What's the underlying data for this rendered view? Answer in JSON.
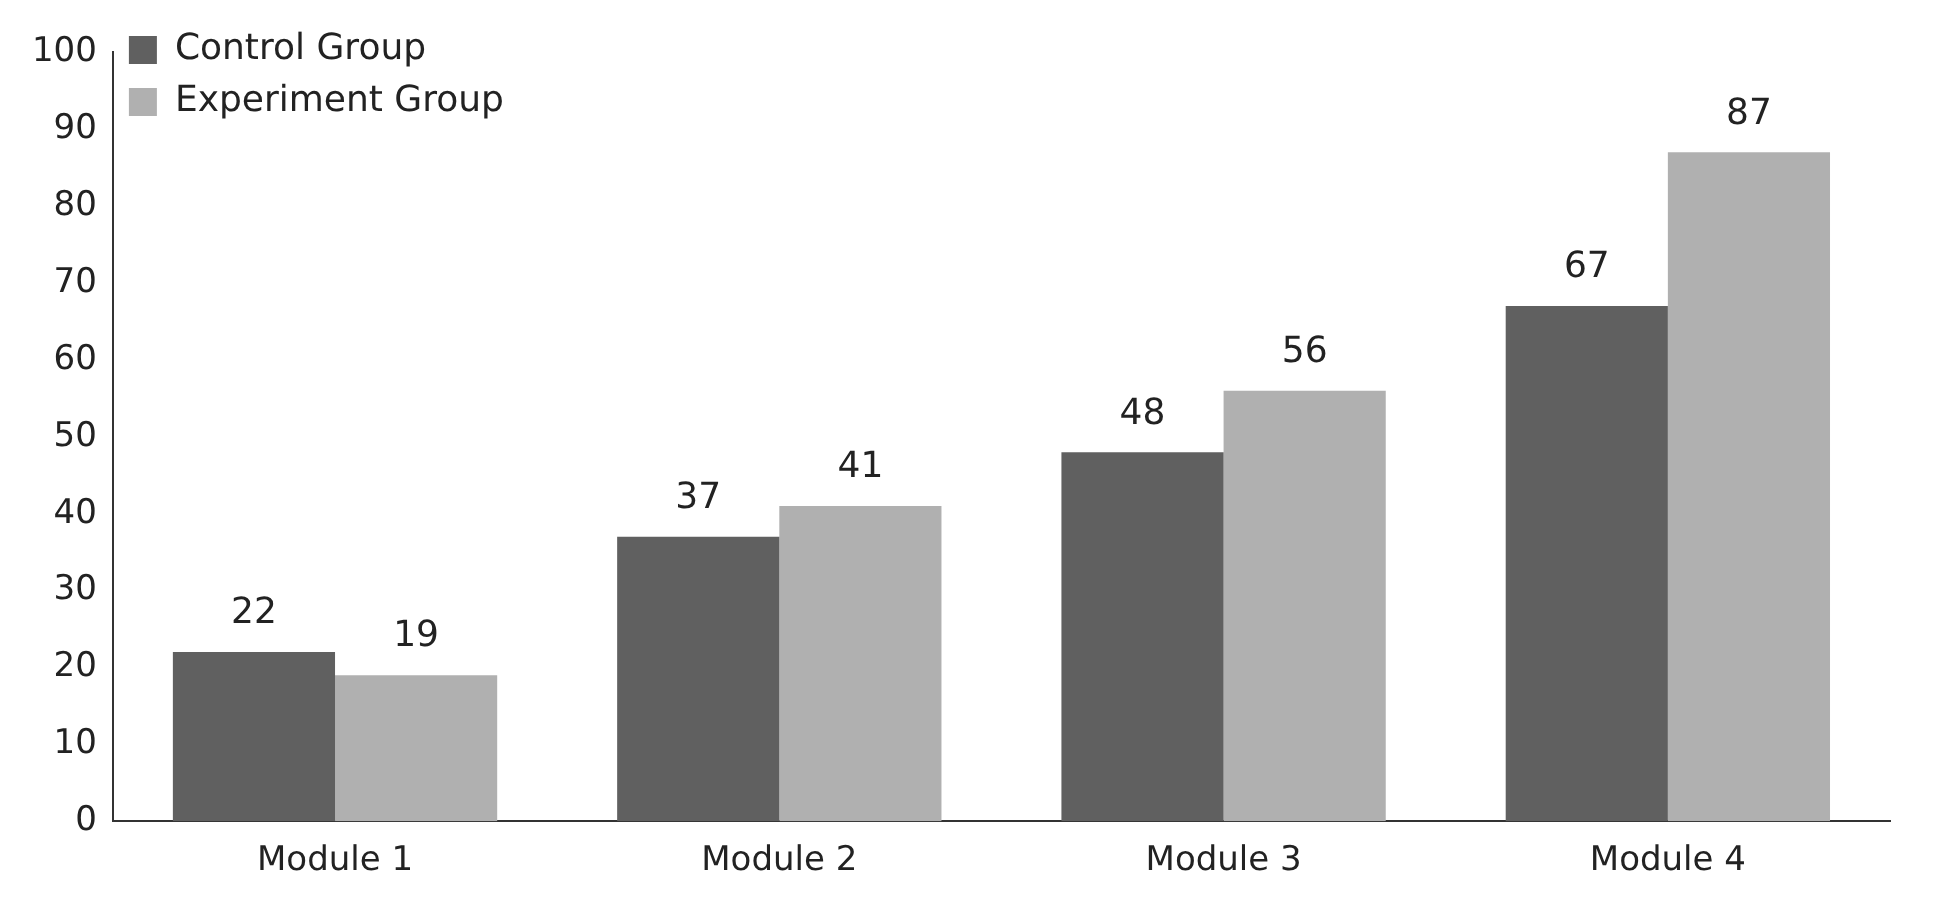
{
  "chart_data": {
    "type": "bar",
    "categories": [
      "Module 1",
      "Module 2",
      "Module 3",
      "Module 4"
    ],
    "series": [
      {
        "name": "Control Group",
        "color": "#606060",
        "values": [
          22,
          37,
          48,
          67
        ]
      },
      {
        "name": "Experiment Group",
        "color": "#b0b0b0",
        "values": [
          19,
          41,
          56,
          87
        ]
      }
    ],
    "ylim": [
      0,
      100
    ],
    "yticks": [
      0,
      10,
      20,
      30,
      40,
      50,
      60,
      70,
      80,
      90,
      100
    ],
    "grid": false,
    "legend": "top left",
    "data_labels": true
  }
}
